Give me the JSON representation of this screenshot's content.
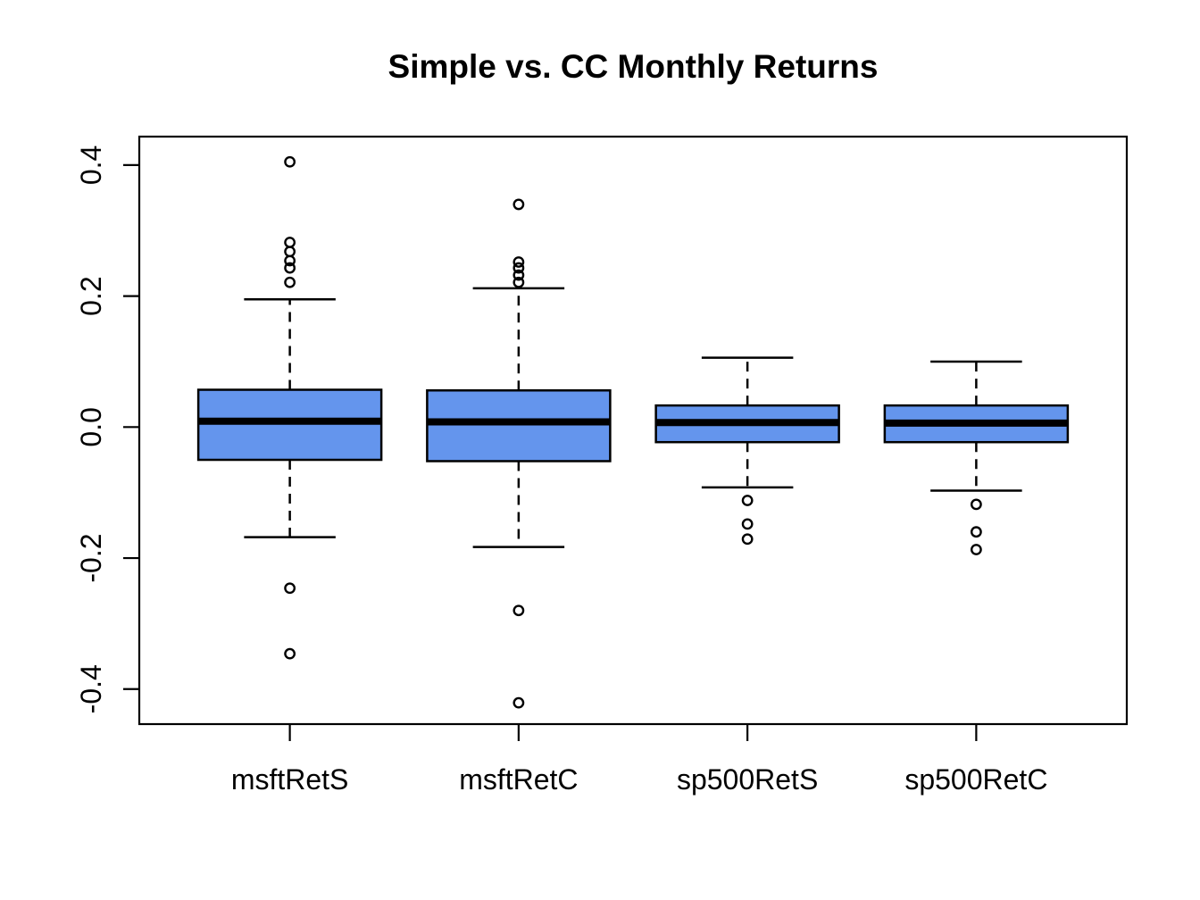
{
  "title": "Simple vs. CC Monthly Returns",
  "colors": {
    "box_fill": "#6495ED",
    "line": "#000000",
    "background": "#ffffff"
  },
  "chart_data": {
    "type": "boxplot",
    "title": "Simple vs. CC Monthly Returns",
    "categories": [
      "msftRetS",
      "msftRetC",
      "sp500RetS",
      "sp500RetC"
    ],
    "ylim": [
      -0.4535,
      0.4435
    ],
    "xlim": [
      0.342,
      4.658
    ],
    "yticks": [
      -0.4,
      -0.2,
      0.0,
      0.2,
      0.4
    ],
    "ytick_labels": [
      "-0.4",
      "-0.2",
      "0.0",
      "0.2",
      "0.4"
    ],
    "grid": false,
    "legend": null,
    "box_width": 0.8,
    "series": [
      {
        "name": "msftRetS",
        "lower_whisker": -0.168,
        "q1": -0.05,
        "median": 0.009,
        "q3": 0.057,
        "upper_whisker": 0.195,
        "outliers": [
          0.405,
          0.282,
          0.268,
          0.254,
          0.243,
          0.221,
          -0.246,
          -0.346
        ]
      },
      {
        "name": "msftRetC",
        "lower_whisker": -0.183,
        "q1": -0.052,
        "median": 0.008,
        "q3": 0.056,
        "upper_whisker": 0.212,
        "outliers": [
          0.34,
          0.252,
          0.243,
          0.232,
          0.221,
          -0.28,
          -0.421
        ]
      },
      {
        "name": "sp500RetS",
        "lower_whisker": -0.092,
        "q1": -0.023,
        "median": 0.007,
        "q3": 0.033,
        "upper_whisker": 0.106,
        "outliers": [
          -0.112,
          -0.148,
          -0.171
        ]
      },
      {
        "name": "sp500RetC",
        "lower_whisker": -0.097,
        "q1": -0.023,
        "median": 0.006,
        "q3": 0.033,
        "upper_whisker": 0.1,
        "outliers": [
          -0.118,
          -0.16,
          -0.187
        ]
      }
    ]
  }
}
